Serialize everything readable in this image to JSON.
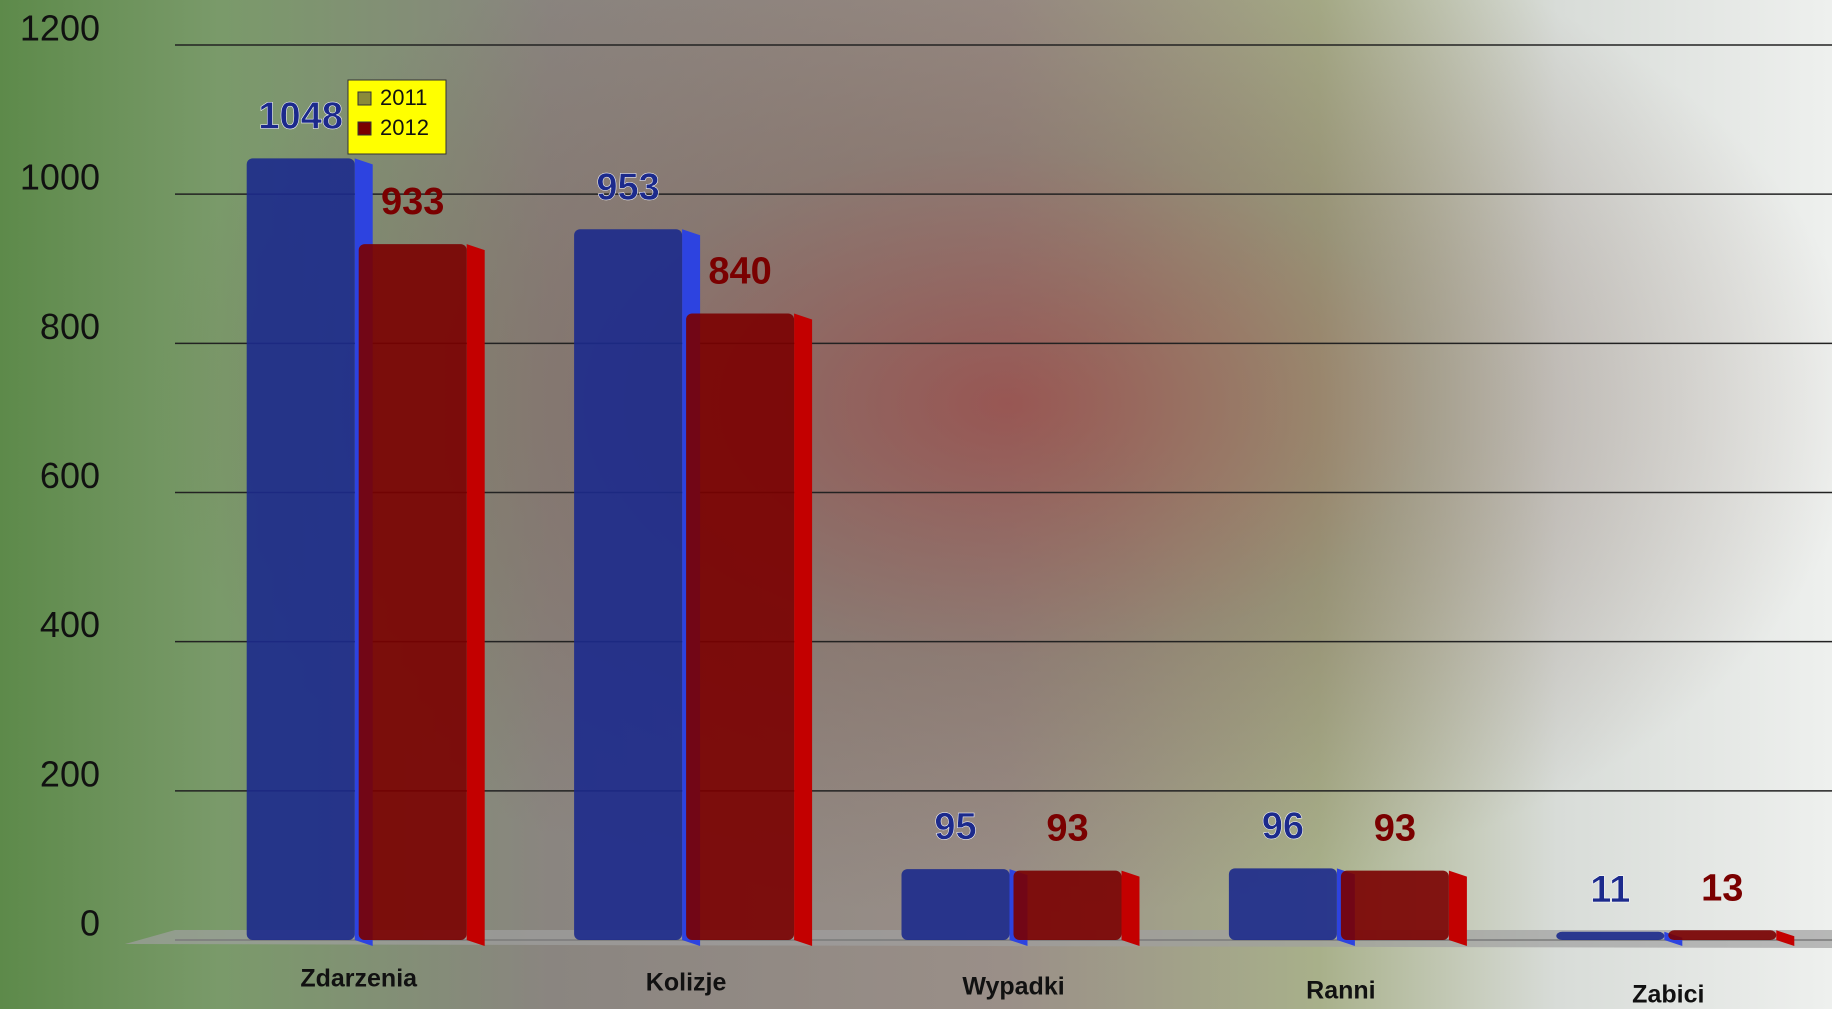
{
  "chart_data": {
    "type": "bar",
    "categories": [
      "Zdarzenia",
      "Kolizje",
      "Wypadki",
      "Ranni",
      "Zabici"
    ],
    "series": [
      {
        "name": "2011",
        "color": "#1c2a8c",
        "values": [
          1048,
          953,
          95,
          96,
          11
        ]
      },
      {
        "name": "2012",
        "color": "#7a0000",
        "values": [
          933,
          840,
          93,
          93,
          13
        ]
      }
    ],
    "ylim": [
      0,
      1200
    ],
    "yticks": [
      0,
      200,
      400,
      600,
      800,
      1000,
      1200
    ],
    "grid": true,
    "legend": "top-left"
  }
}
